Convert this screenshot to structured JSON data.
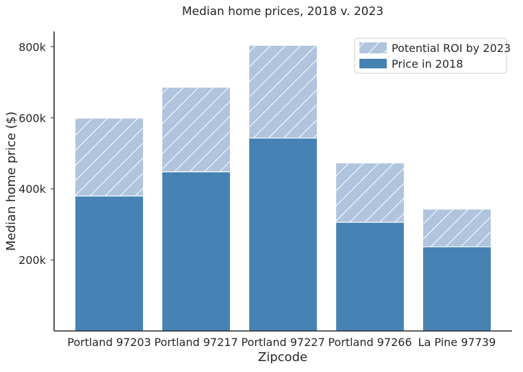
{
  "chart_data": {
    "type": "bar",
    "stacked": true,
    "title": "Median home prices, 2018 v. 2023",
    "xlabel": "Zipcode",
    "ylabel": "Median home price ($)",
    "categories": [
      "Portland 97203",
      "Portland 97217",
      "Portland 97227",
      "Portland 97266",
      "La Pine 97739"
    ],
    "series": [
      {
        "name": "Price in 2018",
        "values": [
          380000,
          448000,
          543000,
          306000,
          237000
        ],
        "color": "#4682b4",
        "pattern": "solid"
      },
      {
        "name": "Potential ROI by 2023",
        "values": [
          219000,
          238000,
          261000,
          167000,
          106000
        ],
        "color": "#b0c4de",
        "pattern": "hatch"
      }
    ],
    "totals_2023": [
      599000,
      686000,
      804000,
      473000,
      343000
    ],
    "y_ticks": [
      200000,
      400000,
      600000,
      800000
    ],
    "y_tick_labels": [
      "200k",
      "400k",
      "600k",
      "800k"
    ],
    "ylim": [
      0,
      843000
    ],
    "grid": false,
    "legend_position": "top-right"
  }
}
